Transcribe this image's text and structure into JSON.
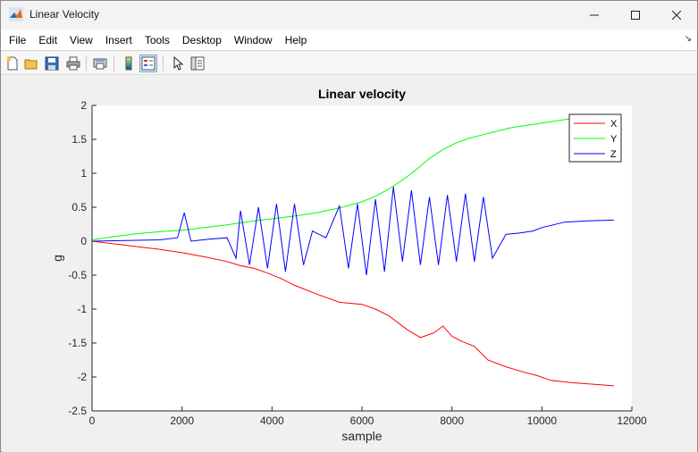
{
  "window": {
    "title": "Linear Velocity"
  },
  "menu": {
    "items": [
      "File",
      "Edit",
      "View",
      "Insert",
      "Tools",
      "Desktop",
      "Window",
      "Help"
    ]
  },
  "toolbar": {
    "buttons": [
      "new-figure",
      "open-file",
      "save",
      "print",
      "print-preview",
      "colorbar",
      "legend",
      "select-arrow",
      "property-inspector"
    ]
  },
  "chart_data": {
    "type": "line",
    "title": "Linear velocity",
    "xlabel": "sample",
    "ylabel": "g",
    "xlim": [
      0,
      12000
    ],
    "ylim": [
      -2.5,
      2
    ],
    "xticks": [
      0,
      2000,
      4000,
      6000,
      8000,
      10000,
      12000
    ],
    "yticks": [
      -2.5,
      -2,
      -1.5,
      -1,
      -0.5,
      0,
      0.5,
      1,
      1.5,
      2
    ],
    "grid": false,
    "legend_position": "top-right",
    "series": [
      {
        "name": "X",
        "color": "#ff0000",
        "x": [
          0,
          500,
          1000,
          1500,
          2000,
          2500,
          3000,
          3300,
          3600,
          3900,
          4200,
          4500,
          5000,
          5500,
          6000,
          6300,
          6600,
          7000,
          7300,
          7600,
          7800,
          8000,
          8200,
          8500,
          8800,
          9200,
          9600,
          9900,
          10200,
          10600,
          11000,
          11600
        ],
        "y": [
          0,
          -0.04,
          -0.08,
          -0.12,
          -0.17,
          -0.23,
          -0.3,
          -0.36,
          -0.4,
          -0.47,
          -0.55,
          -0.65,
          -0.78,
          -0.9,
          -0.93,
          -1.0,
          -1.1,
          -1.3,
          -1.42,
          -1.35,
          -1.25,
          -1.4,
          -1.47,
          -1.55,
          -1.75,
          -1.85,
          -1.93,
          -1.98,
          -2.05,
          -2.08,
          -2.1,
          -2.13
        ]
      },
      {
        "name": "Y",
        "color": "#00ff00",
        "x": [
          0,
          500,
          1000,
          1500,
          2000,
          2500,
          3000,
          3500,
          4000,
          4500,
          5000,
          5500,
          6000,
          6300,
          6600,
          6900,
          7200,
          7500,
          7800,
          8100,
          8400,
          8700,
          9000,
          9300,
          9600,
          9900,
          10200,
          10600
        ],
        "y": [
          0.02,
          0.07,
          0.11,
          0.14,
          0.16,
          0.2,
          0.24,
          0.29,
          0.33,
          0.37,
          0.42,
          0.49,
          0.58,
          0.66,
          0.77,
          0.9,
          1.05,
          1.22,
          1.35,
          1.45,
          1.52,
          1.57,
          1.62,
          1.67,
          1.7,
          1.73,
          1.76,
          1.8
        ]
      },
      {
        "name": "Z",
        "color": "#0000ff",
        "x": [
          0,
          1500,
          1900,
          2050,
          2200,
          2600,
          3000,
          3200,
          3300,
          3500,
          3700,
          3900,
          4100,
          4300,
          4500,
          4700,
          4900,
          5200,
          5500,
          5700,
          5900,
          6100,
          6300,
          6500,
          6700,
          6900,
          7100,
          7300,
          7500,
          7700,
          7900,
          8100,
          8300,
          8500,
          8700,
          8900,
          9200,
          9500,
          9800,
          10000,
          10500,
          11000,
          11600
        ],
        "y": [
          0,
          0.02,
          0.05,
          0.42,
          0.0,
          0.03,
          0.05,
          -0.25,
          0.45,
          -0.35,
          0.5,
          -0.4,
          0.55,
          -0.45,
          0.55,
          -0.35,
          0.15,
          0.05,
          0.52,
          -0.4,
          0.55,
          -0.5,
          0.62,
          -0.45,
          0.8,
          -0.3,
          0.75,
          -0.35,
          0.65,
          -0.35,
          0.68,
          -0.3,
          0.7,
          -0.3,
          0.65,
          -0.25,
          0.1,
          0.12,
          0.15,
          0.2,
          0.28,
          0.3,
          0.31
        ]
      }
    ]
  }
}
